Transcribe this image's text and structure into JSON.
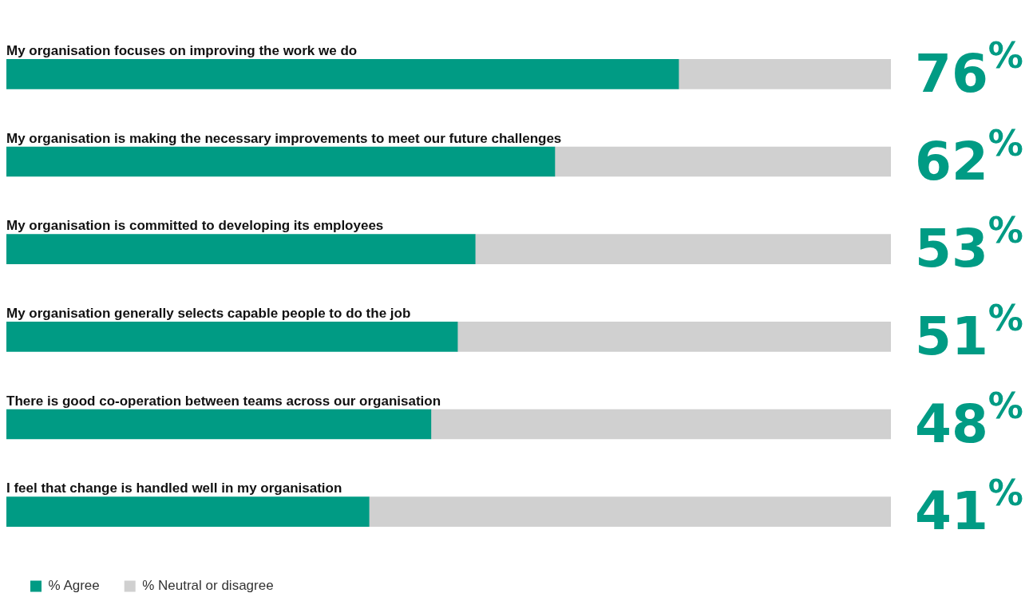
{
  "chart_data": {
    "type": "bar",
    "orientation": "horizontal",
    "stacked": true,
    "categories": [
      "My organisation focuses on improving the work we do",
      "My organisation is making the necessary improvements to meet our future challenges",
      "My organisation is committed to developing its employees",
      "My organisation generally selects capable people to do the job",
      "There is good co-operation between teams across our organisation",
      "I feel that change is handled well in my organisation"
    ],
    "series": [
      {
        "name": "% Agree",
        "color": "#009b84",
        "values": [
          76,
          62,
          53,
          51,
          48,
          41
        ],
        "value_labels": [
          "76$^{%}$",
          "62$^{%}$",
          "53$^{%}$",
          "51$^{%}$",
          "48$^{%}$",
          "41$^{%}$"
        ]
      },
      {
        "name": "% Neutral or disagree",
        "color": "#d0d0d0",
        "values": [
          24,
          38,
          47,
          49,
          52,
          59
        ]
      }
    ],
    "xlim": [
      0,
      100
    ],
    "tick_labels": false,
    "legend": "bottom left"
  }
}
